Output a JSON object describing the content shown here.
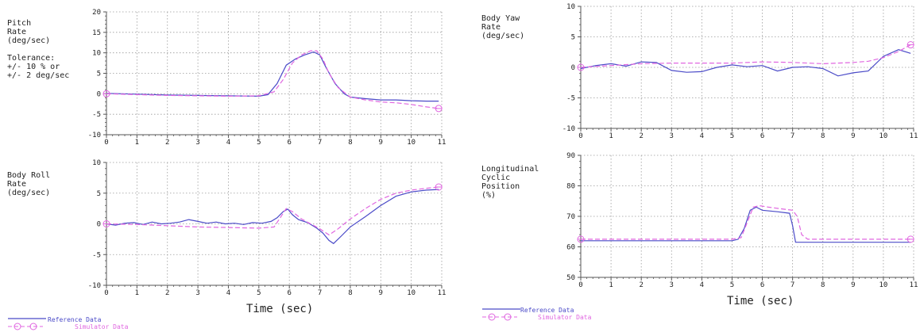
{
  "chart_data": [
    {
      "type": "line",
      "label": "Pitch\nRate\n(deg/sec)\n\nTolerance:\n+/- 10 % or\n+/- 2 deg/sec",
      "xlim": [
        0,
        11
      ],
      "ylim": [
        -10,
        20
      ],
      "xticks": [
        "0",
        "1",
        "2",
        "3",
        "4",
        "5",
        "6",
        "7",
        "8",
        "9",
        "10",
        "11"
      ],
      "yticks": [
        "-10",
        "-5",
        "0",
        "5",
        "10",
        "15",
        "20"
      ],
      "grid": true,
      "series": [
        {
          "name": "Reference Data",
          "x": [
            0,
            1,
            2,
            3,
            4,
            5,
            5.3,
            5.6,
            5.9,
            6.2,
            6.5,
            6.8,
            7.0,
            7.2,
            7.5,
            7.8,
            8.0,
            8.5,
            9,
            9.5,
            10,
            10.5,
            10.9
          ],
          "y": [
            0.1,
            -0.1,
            -0.3,
            -0.4,
            -0.5,
            -0.6,
            -0.2,
            2.5,
            7,
            8.5,
            9.5,
            10.2,
            9.5,
            6.5,
            2.5,
            0,
            -0.8,
            -1.2,
            -1.5,
            -1.5,
            -1.7,
            -1.8,
            -1.8
          ]
        },
        {
          "name": "Simulator Data",
          "x": [
            0,
            1,
            2,
            3,
            4,
            5,
            5.5,
            5.8,
            6.1,
            6.4,
            6.7,
            6.9,
            7.1,
            7.3,
            7.6,
            8.0,
            8.5,
            9,
            9.5,
            10,
            10.5,
            10.9
          ],
          "y": [
            0,
            -0.2,
            -0.4,
            -0.5,
            -0.6,
            -0.5,
            0.5,
            3.5,
            7.5,
            9.5,
            10.5,
            10.5,
            8.5,
            5,
            1.5,
            -0.8,
            -1.5,
            -2,
            -2.2,
            -2.6,
            -3.2,
            -3.6
          ]
        }
      ]
    },
    {
      "type": "line",
      "label": "Body Roll\nRate\n(deg/sec)",
      "xlim": [
        0,
        11
      ],
      "ylim": [
        -10,
        10
      ],
      "xticks": [
        "0",
        "1",
        "2",
        "3",
        "4",
        "5",
        "6",
        "7",
        "8",
        "9",
        "10",
        "11"
      ],
      "yticks": [
        "-10",
        "-5",
        "0",
        "5",
        "10"
      ],
      "grid": true,
      "series": [
        {
          "name": "Reference Data",
          "x": [
            0,
            0.3,
            0.6,
            0.9,
            1.2,
            1.5,
            1.8,
            2.1,
            2.4,
            2.7,
            3.0,
            3.3,
            3.6,
            3.9,
            4.2,
            4.5,
            4.8,
            5.1,
            5.4,
            5.6,
            5.8,
            5.95,
            6.1,
            6.3,
            6.6,
            6.9,
            7.1,
            7.3,
            7.45,
            7.7,
            8.0,
            8.5,
            9,
            9.5,
            10,
            10.5,
            10.9
          ],
          "y": [
            0,
            -0.2,
            0.1,
            0.2,
            -0.1,
            0.3,
            0,
            0.1,
            0.3,
            0.7,
            0.4,
            0.1,
            0.3,
            0,
            0.1,
            -0.1,
            0.2,
            0.1,
            0.4,
            1,
            2,
            2.4,
            1.5,
            0.7,
            0.2,
            -0.7,
            -1.5,
            -2.7,
            -3.2,
            -2,
            -0.5,
            1.2,
            3,
            4.5,
            5.2,
            5.5,
            5.6
          ]
        },
        {
          "name": "Simulator Data",
          "x": [
            0,
            1,
            2,
            3,
            4,
            5,
            5.5,
            5.7,
            5.9,
            6.1,
            6.4,
            6.7,
            7.0,
            7.3,
            7.6,
            8.0,
            8.5,
            9,
            9.5,
            10,
            10.5,
            10.9
          ],
          "y": [
            0,
            -0.1,
            -0.3,
            -0.5,
            -0.6,
            -0.7,
            -0.5,
            1,
            2.5,
            2,
            0.8,
            0,
            -0.8,
            -1.8,
            -0.8,
            0.8,
            2.5,
            4,
            5,
            5.5,
            5.8,
            6
          ]
        }
      ]
    },
    {
      "type": "line",
      "label": "Body Yaw\nRate\n(deg/sec)",
      "xlim": [
        0,
        11
      ],
      "ylim": [
        -10,
        10
      ],
      "xticks": [
        "0",
        "1",
        "2",
        "3",
        "4",
        "5",
        "6",
        "7",
        "8",
        "9",
        "10",
        "11"
      ],
      "yticks": [
        "-10",
        "-5",
        "0",
        "5",
        "10"
      ],
      "grid": true,
      "series": [
        {
          "name": "Reference Data",
          "x": [
            0,
            0.5,
            1,
            1.5,
            2,
            2.5,
            3,
            3.5,
            4,
            4.5,
            5,
            5.5,
            6,
            6.5,
            7,
            7.5,
            8,
            8.5,
            9,
            9.5,
            10,
            10.5,
            10.9
          ],
          "y": [
            -0.2,
            0.3,
            0.6,
            0.2,
            0.9,
            0.8,
            -0.5,
            -0.8,
            -0.7,
            0,
            0.4,
            0.1,
            0.3,
            -0.6,
            0,
            0.1,
            -0.2,
            -1.4,
            -0.9,
            -0.6,
            1.8,
            2.9,
            2.3
          ]
        },
        {
          "name": "Simulator Data",
          "x": [
            0,
            1,
            2,
            3,
            4,
            5,
            6,
            7,
            8,
            9,
            9.5,
            10,
            10.5,
            10.9
          ],
          "y": [
            0,
            0.3,
            0.6,
            0.7,
            0.7,
            0.7,
            0.9,
            0.8,
            0.6,
            0.8,
            1,
            1.6,
            2.6,
            3.7
          ]
        }
      ]
    },
    {
      "type": "line",
      "label": "Longitudinal\nCyclic\nPosition\n(%)",
      "xlim": [
        0,
        11
      ],
      "ylim": [
        50,
        90
      ],
      "xticks": [
        "0",
        "1",
        "2",
        "3",
        "4",
        "5",
        "6",
        "7",
        "8",
        "9",
        "10",
        "11"
      ],
      "yticks": [
        "50",
        "60",
        "70",
        "80",
        "90"
      ],
      "grid": true,
      "series": [
        {
          "name": "Reference Data",
          "x": [
            0,
            1,
            2,
            3,
            4,
            5,
            5.2,
            5.4,
            5.6,
            5.8,
            6.0,
            6.5,
            6.9,
            7.0,
            7.1,
            7.3,
            8,
            9,
            10,
            10.9
          ],
          "y": [
            62,
            62,
            62,
            62,
            62,
            62,
            62.5,
            66,
            72,
            73,
            72,
            71.5,
            71,
            67,
            61.5,
            61.5,
            61.5,
            61.5,
            61.5,
            61.5
          ]
        },
        {
          "name": "Simulator Data",
          "x": [
            0,
            1,
            2,
            3,
            4,
            5,
            5.3,
            5.5,
            5.7,
            5.9,
            6.2,
            6.6,
            7.0,
            7.15,
            7.3,
            7.5,
            8,
            9,
            10,
            10.9
          ],
          "y": [
            62.5,
            62.5,
            62.5,
            62.5,
            62.5,
            62.5,
            63,
            68,
            73,
            73.5,
            73,
            72.5,
            72,
            70,
            64,
            62.5,
            62.5,
            62.5,
            62.5,
            62.5
          ]
        }
      ]
    }
  ],
  "axis_title": "Time (sec)",
  "legend": {
    "reference": "Reference Data",
    "simulator": "Simulator Data"
  },
  "colors": {
    "reference": "#4b4bc8",
    "simulator": "#e066e0",
    "grid": "#9a9a9a",
    "axis": "#555555"
  }
}
